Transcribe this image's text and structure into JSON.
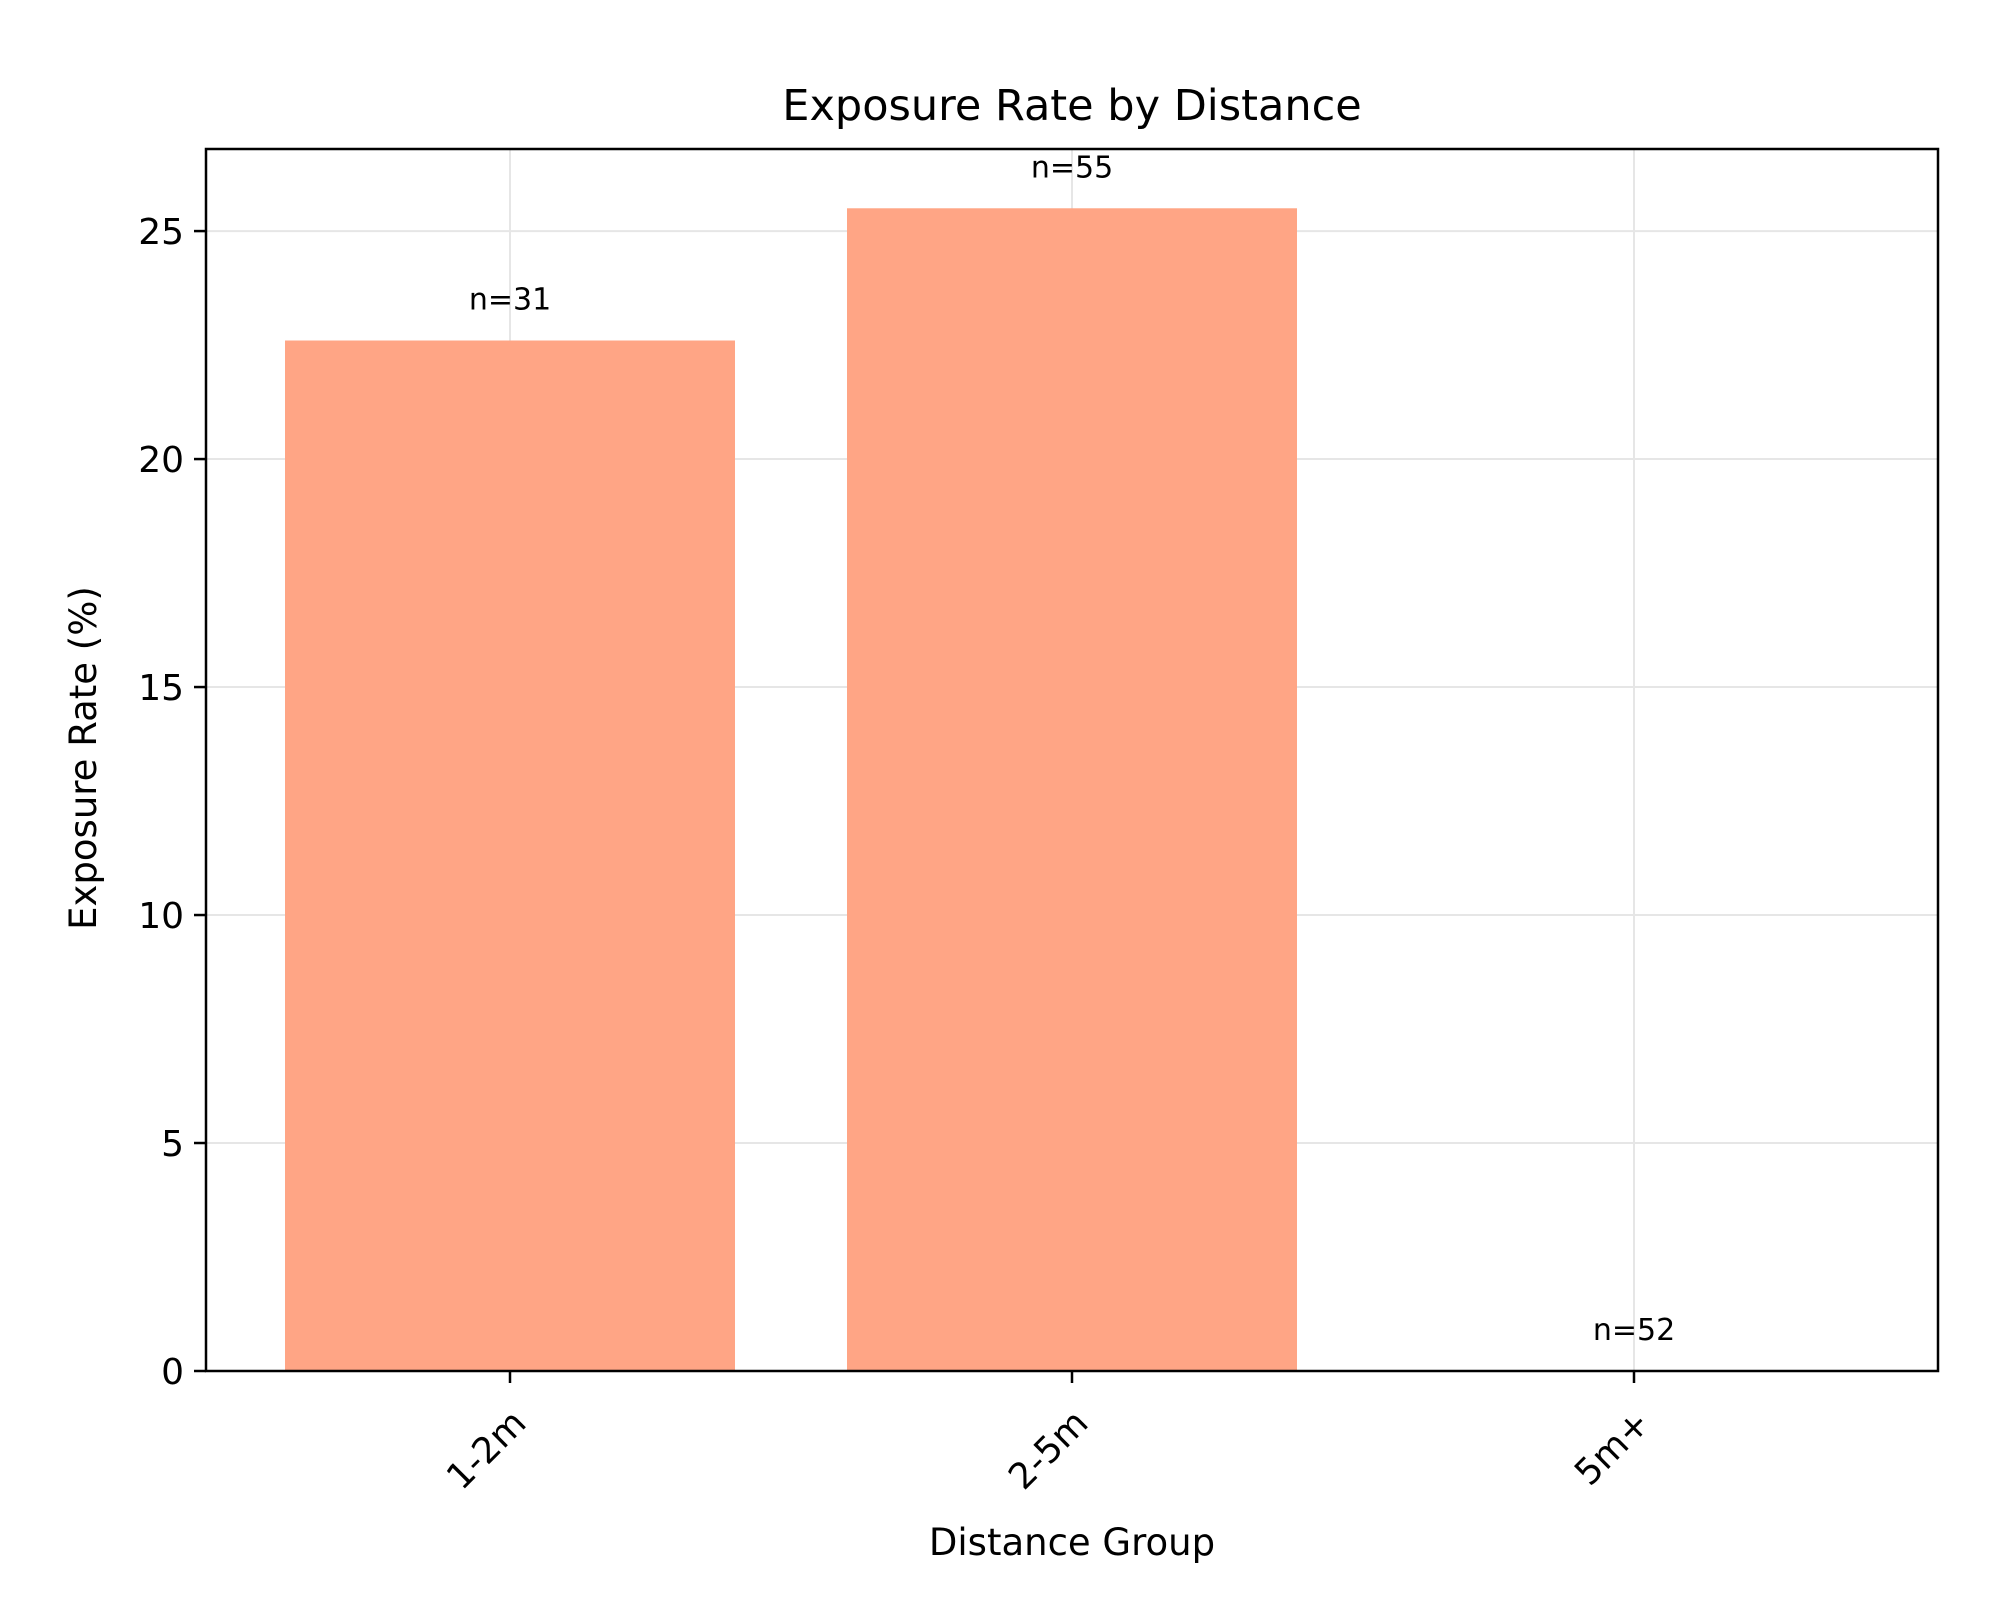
{
  "chart_data": {
    "type": "bar",
    "title": "Exposure Rate by Distance",
    "xlabel": "Distance Group",
    "ylabel": "Exposure Rate (%)",
    "categories": [
      "1-2m",
      "2-5m",
      "5m+"
    ],
    "values": [
      22.6,
      25.5,
      0
    ],
    "bar_labels": [
      "n=31",
      "n=55",
      "n=52"
    ],
    "yticks": [
      0,
      5,
      10,
      15,
      20,
      25
    ],
    "ylim": [
      0,
      26.8
    ],
    "grid": true,
    "legend": "none",
    "colors": {
      "bar": "#FFA585",
      "grid": "#E6E6E6",
      "axis": "#000000"
    }
  }
}
